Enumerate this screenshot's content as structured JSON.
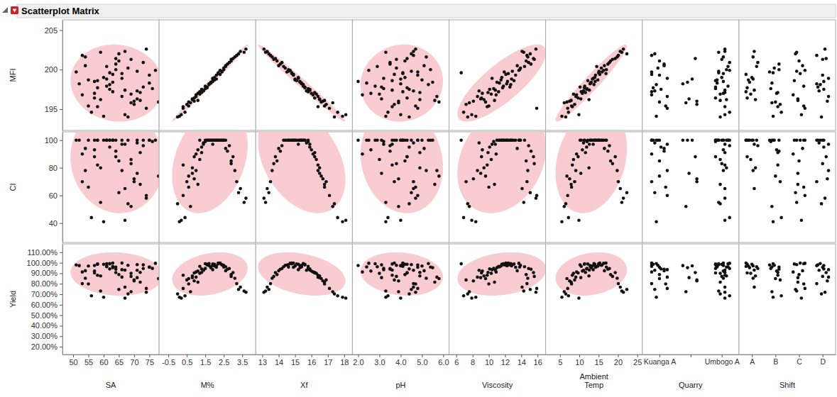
{
  "chart_data": {
    "type": "scatter_matrix",
    "title": "Scatterplot Matrix",
    "x_vars": [
      {
        "label": [
          "SA"
        ],
        "xlim": [
          46.5,
          78.2
        ],
        "xticks": [
          50,
          55,
          60,
          65,
          70,
          75
        ]
      },
      {
        "label": [
          "M%"
        ],
        "xlim": [
          -1.0,
          4.23
        ],
        "xticks": [
          -0.5,
          0.5,
          1.5,
          2.5,
          3.5
        ]
      },
      {
        "label": [
          "Xf"
        ],
        "xlim": [
          12.6,
          18.5
        ],
        "xticks": [
          13,
          14,
          15,
          16,
          17,
          18
        ]
      },
      {
        "label": [
          "pH"
        ],
        "xlim": [
          1.73,
          6.27
        ],
        "xticks": [
          {
            "value": 2,
            "label": "2.0"
          },
          {
            "value": 3,
            "label": "3.0"
          },
          {
            "value": 4,
            "label": "4.0"
          },
          {
            "value": 5,
            "label": "5.0"
          },
          {
            "value": 6,
            "label": "6.0"
          }
        ]
      },
      {
        "label": [
          "Viscosity"
        ],
        "xlim": [
          5.1,
          17.0
        ],
        "xticks": [
          6,
          8,
          10,
          12,
          14,
          16
        ]
      },
      {
        "label": [
          "Ambient",
          "Temp"
        ],
        "xlim": [
          1.3,
          26.3
        ],
        "xticks": [
          5,
          10,
          15,
          20,
          25
        ]
      },
      {
        "label": [
          "Quarry"
        ],
        "categories": [
          "Kuanga A",
          null,
          "Umbogo A"
        ]
      },
      {
        "label": [
          "Shift"
        ],
        "categories": [
          "A",
          "B",
          "C",
          "D"
        ]
      }
    ],
    "y_vars": [
      {
        "label": [
          "MFI"
        ],
        "ylim": [
          192.3,
          206.3
        ],
        "yticks": [
          195,
          200,
          205
        ]
      },
      {
        "label": [
          "CI"
        ],
        "ylim": [
          26,
          106
        ],
        "yticks": [
          40,
          60,
          80,
          100
        ]
      },
      {
        "label": [
          "Yield"
        ],
        "ylim": [
          12.6,
          118
        ],
        "yticks": [
          {
            "value": 20,
            "label": "20.00%"
          },
          {
            "value": 30,
            "label": "30.00%"
          },
          {
            "value": 40,
            "label": "40.00%"
          },
          {
            "value": 50,
            "label": "50.00%"
          },
          {
            "value": 60,
            "label": "60.00%"
          },
          {
            "value": 70,
            "label": "70.00%"
          },
          {
            "value": 80,
            "label": "80.00%"
          },
          {
            "value": 90,
            "label": "90.00%"
          },
          {
            "value": 100,
            "label": "100.00%"
          },
          {
            "value": 110,
            "label": "110.00%"
          }
        ]
      }
    ],
    "rows": [
      [
        63,
        1.2,
        15.8,
        4.1,
        11.2,
        10.5,
        0,
        0,
        197.2,
        100,
        96.5
      ],
      [
        58,
        0.3,
        16.4,
        3.6,
        9.8,
        8.2,
        2,
        1,
        195.3,
        82,
        88.1
      ],
      [
        71,
        2.4,
        14.6,
        4.5,
        12.9,
        15.1,
        2,
        2,
        199.8,
        100,
        98.2
      ],
      [
        66,
        1.9,
        15.2,
        3.2,
        10.4,
        13.6,
        0,
        3,
        198.9,
        97,
        93.4
      ],
      [
        54,
        3.1,
        13.6,
        5.2,
        14.8,
        19.8,
        2,
        0,
        201.6,
        78,
        85.2
      ],
      [
        69,
        0.7,
        17.3,
        3.9,
        7.6,
        6.1,
        1,
        1,
        195.8,
        52,
        72.4
      ],
      [
        61,
        1.5,
        15.5,
        2.8,
        11.8,
        11.4,
        2,
        2,
        197.9,
        100,
        99.1
      ],
      [
        75,
        2.1,
        14.9,
        4.8,
        13.3,
        14.2,
        0,
        3,
        199.3,
        100,
        95.7
      ],
      [
        57,
        0.9,
        16.2,
        4.3,
        9.1,
        9.7,
        2,
        0,
        196.4,
        88,
        90.3
      ],
      [
        64,
        2.7,
        14.1,
        3.5,
        15.2,
        17.4,
        0,
        1,
        200.7,
        92,
        93.8
      ],
      [
        72,
        1.1,
        16.8,
        5.6,
        10.7,
        7.9,
        2,
        2,
        196.1,
        68,
        81.5
      ],
      [
        52,
        1.7,
        15.4,
        4.0,
        12.2,
        12.8,
        1,
        3,
        198.2,
        100,
        97.3
      ],
      [
        67,
        3.4,
        13.3,
        4.6,
        14.1,
        20.6,
        2,
        0,
        202.3,
        65,
        76.8
      ],
      [
        60,
        0.1,
        17.9,
        3.3,
        8.4,
        5.5,
        0,
        1,
        194.1,
        41,
        67.2
      ],
      [
        77,
        2.3,
        14.7,
        2.5,
        13.7,
        16.3,
        2,
        2,
        199.9,
        100,
        99.5
      ],
      [
        62,
        1.3,
        15.9,
        4.4,
        10.1,
        11.9,
        0,
        3,
        197.5,
        95,
        94.1
      ],
      [
        55,
        2.0,
        15.0,
        5.0,
        11.5,
        14.8,
        2,
        0,
        198.7,
        100,
        96.9
      ],
      [
        70,
        0.5,
        16.9,
        3.7,
        7.2,
        8.8,
        1,
        1,
        195.6,
        70,
        83.6
      ],
      [
        65,
        2.9,
        13.9,
        4.2,
        14.6,
        18.1,
        0,
        2,
        201.1,
        85,
        88.7
      ],
      [
        73,
        1.6,
        15.6,
        3.1,
        12.6,
        10.2,
        2,
        3,
        197.8,
        100,
        98.0
      ],
      [
        59,
        0.8,
        16.5,
        4.9,
        9.4,
        12.5,
        2,
        0,
        196.2,
        80,
        87.4
      ],
      [
        68,
        2.5,
        14.4,
        3.8,
        13.9,
        15.7,
        0,
        1,
        200.2,
        100,
        97.6
      ],
      [
        53,
        1.0,
        16.1,
        2.2,
        10.9,
        9.3,
        0,
        2,
        196.8,
        90,
        91.2
      ],
      [
        74,
        3.7,
        13.1,
        4.7,
        15.8,
        21.4,
        2,
        3,
        202.6,
        58,
        71.9
      ],
      [
        63,
        1.8,
        15.3,
        5.5,
        11.0,
        13.1,
        1,
        0,
        198.4,
        100,
        95.3
      ],
      [
        56,
        0.4,
        17.6,
        3.4,
        6.9,
        7.2,
        2,
        1,
        194.6,
        44,
        68.5
      ],
      [
        66,
        2.2,
        14.8,
        4.1,
        12.4,
        16.9,
        2,
        2,
        199.5,
        100,
        99.7
      ],
      [
        71,
        1.4,
        15.7,
        4.6,
        8.8,
        11.1,
        0,
        3,
        197.3,
        98,
        92.8
      ],
      [
        61,
        2.6,
        14.3,
        2.9,
        14.4,
        14.5,
        2,
        0,
        200.4,
        100,
        96.2
      ],
      [
        78,
        0.6,
        16.6,
        5.8,
        9.6,
        6.8,
        0,
        1,
        195.9,
        74,
        84.9
      ],
      [
        58,
        1.9,
        15.1,
        3.6,
        13.1,
        12.2,
        2,
        2,
        198.6,
        100,
        98.8
      ],
      [
        64,
        3.0,
        13.8,
        4.3,
        15.5,
        19.3,
        1,
        3,
        201.4,
        88,
        90.6
      ],
      [
        69,
        1.2,
        16.3,
        3.0,
        10.3,
        8.5,
        2,
        0,
        196.9,
        86,
        89.9
      ],
      [
        51,
        2.4,
        14.5,
        4.8,
        11.9,
        15.9,
        0,
        1,
        199.7,
        100,
        97.9
      ],
      [
        67,
        0.2,
        18.1,
        4.0,
        7.9,
        9.9,
        2,
        2,
        194.3,
        42,
        66.3
      ],
      [
        62,
        1.7,
        15.5,
        5.3,
        12.7,
        13.8,
        0,
        3,
        198.1,
        100,
        99.3
      ],
      [
        73,
        2.8,
        14.2,
        3.5,
        14.9,
        17.8,
        2,
        0,
        200.9,
        96,
        94.5
      ],
      [
        57,
        1.1,
        16.0,
        2.6,
        9.2,
        10.8,
        2,
        1,
        197.0,
        93,
        92.1
      ],
      [
        65,
        3.3,
        13.4,
        4.5,
        15.1,
        22.3,
        0,
        2,
        202.0,
        62,
        74.6
      ],
      [
        70,
        0.9,
        16.7,
        3.9,
        8.1,
        7.5,
        1,
        3,
        196.0,
        72,
        82.7
      ],
      [
        60,
        2.0,
        15.2,
        4.2,
        11.6,
        14.0,
        2,
        0,
        199.0,
        100,
        98.5
      ],
      [
        76,
        1.5,
        15.8,
        3.2,
        10.6,
        12.0,
        2,
        1,
        197.6,
        99,
        94.6
      ],
      [
        54,
        2.6,
        14.0,
        5.1,
        13.5,
        16.5,
        0,
        2,
        200.5,
        94,
        92.4
      ],
      [
        68,
        0.0,
        17.4,
        4.4,
        7.4,
        6.5,
        2,
        3,
        194.0,
        54,
        70.3
      ],
      [
        63,
        2.3,
        14.9,
        3.7,
        12.1,
        15.3,
        0,
        0,
        199.4,
        100,
        99.8
      ],
      [
        72,
        1.3,
        16.2,
        4.9,
        9.9,
        11.6,
        2,
        1,
        197.1,
        91,
        90.8
      ],
      [
        59,
        3.6,
        13.2,
        3.3,
        14.3,
        21.0,
        2,
        2,
        202.2,
        55,
        73.1
      ],
      [
        66,
        1.0,
        16.4,
        5.7,
        8.6,
        9.1,
        0,
        3,
        196.6,
        78,
        86.3
      ],
      [
        61,
        2.1,
        15.0,
        4.0,
        12.8,
        13.4,
        1,
        0,
        198.8,
        100,
        97.1
      ],
      [
        75,
        1.8,
        15.4,
        2.4,
        11.3,
        12.9,
        2,
        1,
        198.3,
        100,
        96.0
      ],
      [
        55,
        0.6,
        16.8,
        4.7,
        10.0,
        8.0,
        0,
        2,
        195.4,
        66,
        79.8
      ],
      [
        69,
        2.9,
        13.7,
        3.8,
        15.6,
        18.6,
        2,
        3,
        201.3,
        83,
        87.0
      ],
      [
        58,
        1.6,
        15.6,
        4.3,
        11.7,
        11.3,
        0,
        0,
        197.7,
        100,
        98.6
      ],
      [
        64,
        2.5,
        14.6,
        5.4,
        13.8,
        17.0,
        2,
        1,
        200.0,
        100,
        95.9
      ],
      [
        71,
        0.8,
        16.5,
        3.1,
        9.0,
        10.4,
        1,
        2,
        196.3,
        76,
        85.8
      ],
      [
        53,
        3.2,
        13.5,
        4.6,
        14.7,
        20.1,
        0,
        3,
        201.8,
        70,
        80.1
      ],
      [
        67,
        1.4,
        15.9,
        3.6,
        10.8,
        12.6,
        2,
        0,
        197.4,
        97,
        93.0
      ],
      [
        62,
        2.2,
        14.8,
        4.1,
        6.6,
        15.0,
        2,
        1,
        199.6,
        100,
        99.0
      ],
      [
        74,
        0.3,
        17.1,
        4.8,
        15.9,
        7.0,
        0,
        2,
        195.1,
        60,
        75.5
      ],
      [
        57,
        1.9,
        15.3,
        2.0,
        12.3,
        14.1,
        2,
        3,
        198.5,
        100,
        97.4
      ]
    ]
  }
}
